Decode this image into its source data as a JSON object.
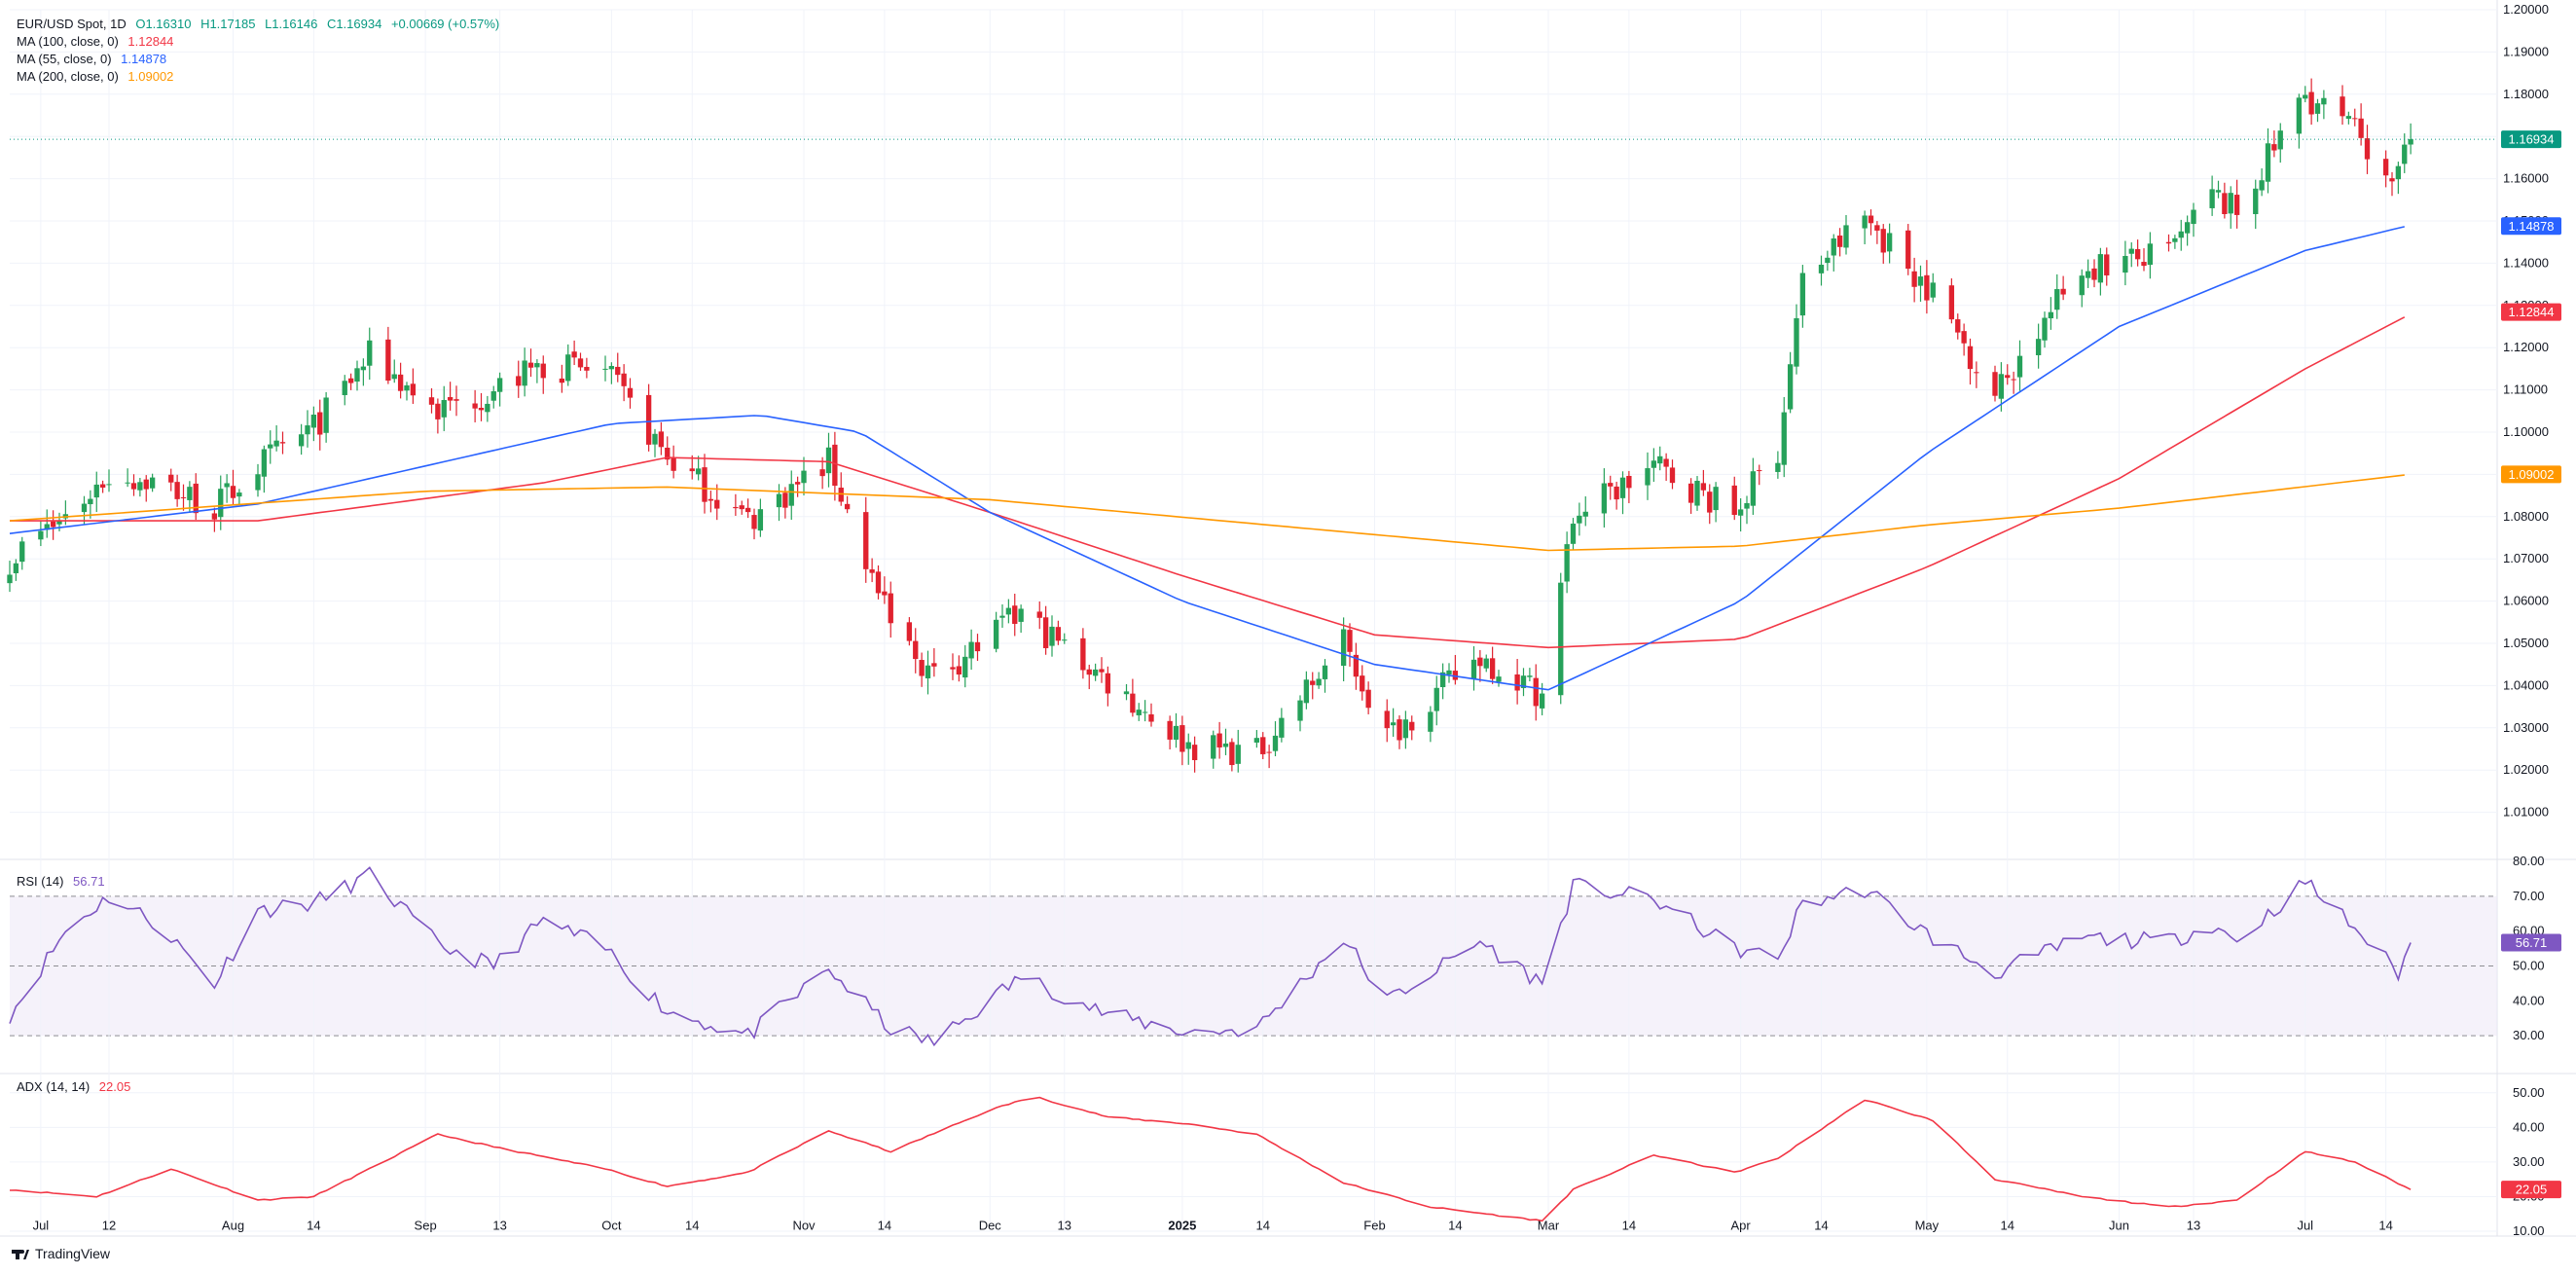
{
  "legend": {
    "symbol": "EUR/USD Spot, 1D",
    "open": "O1.16310",
    "high": "H1.17185",
    "low": "L1.16146",
    "close": "C1.16934",
    "change": "+0.00669 (+0.57%)",
    "ma100_label": "MA (100, close, 0)",
    "ma100_value": "1.12844",
    "ma55_label": "MA (55, close, 0)",
    "ma55_value": "1.14878",
    "ma200_label": "MA (200, close, 0)",
    "ma200_value": "1.09002",
    "rsi_label": "RSI (14)",
    "rsi_value": "56.71",
    "adx_label": "ADX (14, 14)",
    "adx_value": "22.05"
  },
  "footer": {
    "brand": "TradingView"
  },
  "colors": {
    "bull": "#089981",
    "bear": "#F23645",
    "ma100": "#F23645",
    "ma55": "#2962FF",
    "ma200": "#FF9800",
    "rsi": "#7E57C2",
    "adx": "#F23645",
    "candle_up": "#26A15A",
    "candle_down": "#E0222F"
  },
  "chart_data": [
    {
      "type": "candlestick",
      "title": "EUR/USD Spot, 1D",
      "ylim": [
        1.0,
        1.2
      ],
      "y_ticks": [
        "1.20000",
        "1.19000",
        "1.18000",
        "1.17000",
        "1.16000",
        "1.15000",
        "1.14000",
        "1.13000",
        "1.12000",
        "1.11000",
        "1.10000",
        "1.09000",
        "1.08000",
        "1.07000",
        "1.06000",
        "1.05000",
        "1.04000",
        "1.03000",
        "1.02000",
        "1.01000"
      ],
      "x_ticks": [
        "Jul",
        "12",
        "Aug",
        "14",
        "Sep",
        "13",
        "Oct",
        "14",
        "Nov",
        "14",
        "Dec",
        "13",
        "2025",
        "14",
        "Feb",
        "14",
        "Mar",
        "14",
        "Apr",
        "14",
        "May",
        "14",
        "Jun",
        "13",
        "Jul",
        "14"
      ],
      "x_dates": [
        "2024-07-01",
        "2024-07-12",
        "2024-08-01",
        "2024-08-14",
        "2024-09-01",
        "2024-09-13",
        "2024-10-01",
        "2024-10-14",
        "2024-11-01",
        "2024-11-14",
        "2024-12-01",
        "2024-12-13",
        "2025-01-01",
        "2025-01-14",
        "2025-02-01",
        "2025-02-14",
        "2025-03-01",
        "2025-03-14",
        "2025-04-01",
        "2025-04-14",
        "2025-05-01",
        "2025-05-14",
        "2025-06-01",
        "2025-06-13",
        "2025-07-01",
        "2025-07-14"
      ],
      "price_anchors": [
        {
          "date": "2024-06-26",
          "close": 1.07
        },
        {
          "date": "2024-07-05",
          "close": 1.08
        },
        {
          "date": "2024-07-12",
          "close": 1.09
        },
        {
          "date": "2024-07-20",
          "close": 1.088
        },
        {
          "date": "2024-07-29",
          "close": 1.082
        },
        {
          "date": "2024-08-05",
          "close": 1.092
        },
        {
          "date": "2024-08-14",
          "close": 1.101
        },
        {
          "date": "2024-08-23",
          "close": 1.118
        },
        {
          "date": "2024-09-03",
          "close": 1.105
        },
        {
          "date": "2024-09-12",
          "close": 1.11
        },
        {
          "date": "2024-09-20",
          "close": 1.116
        },
        {
          "date": "2024-09-30",
          "close": 1.114
        },
        {
          "date": "2024-10-10",
          "close": 1.094
        },
        {
          "date": "2024-10-23",
          "close": 1.079
        },
        {
          "date": "2024-11-05",
          "close": 1.093
        },
        {
          "date": "2024-11-15",
          "close": 1.054
        },
        {
          "date": "2024-11-22",
          "close": 1.042
        },
        {
          "date": "2024-12-06",
          "close": 1.057
        },
        {
          "date": "2024-12-20",
          "close": 1.041
        },
        {
          "date": "2025-01-02",
          "close": 1.026
        },
        {
          "date": "2025-01-13",
          "close": 1.024
        },
        {
          "date": "2025-01-27",
          "close": 1.05
        },
        {
          "date": "2025-02-03",
          "close": 1.028
        },
        {
          "date": "2025-02-18",
          "close": 1.047
        },
        {
          "date": "2025-02-28",
          "close": 1.038
        },
        {
          "date": "2025-03-05",
          "close": 1.08
        },
        {
          "date": "2025-03-18",
          "close": 1.092
        },
        {
          "date": "2025-03-31",
          "close": 1.081
        },
        {
          "date": "2025-04-07",
          "close": 1.096
        },
        {
          "date": "2025-04-11",
          "close": 1.136
        },
        {
          "date": "2025-04-21",
          "close": 1.151
        },
        {
          "date": "2025-05-02",
          "close": 1.133
        },
        {
          "date": "2025-05-12",
          "close": 1.109
        },
        {
          "date": "2025-05-26",
          "close": 1.139
        },
        {
          "date": "2025-06-09",
          "close": 1.142
        },
        {
          "date": "2025-06-16",
          "close": 1.156
        },
        {
          "date": "2025-06-20",
          "close": 1.152
        },
        {
          "date": "2025-07-01",
          "close": 1.18
        },
        {
          "date": "2025-07-09",
          "close": 1.171
        },
        {
          "date": "2025-07-16",
          "close": 1.16
        },
        {
          "date": "2025-07-18",
          "close": 1.169
        }
      ],
      "last_close": 1.16934,
      "series": [
        {
          "name": "MA (100, close, 0)",
          "last": 1.12844,
          "points": [
            {
              "date": "2024-06-26",
              "value": 1.079
            },
            {
              "date": "2024-08-05",
              "value": 1.079
            },
            {
              "date": "2024-09-20",
              "value": 1.088
            },
            {
              "date": "2024-10-10",
              "value": 1.094
            },
            {
              "date": "2024-11-05",
              "value": 1.093
            },
            {
              "date": "2024-12-01",
              "value": 1.081
            },
            {
              "date": "2025-01-01",
              "value": 1.066
            },
            {
              "date": "2025-02-01",
              "value": 1.052
            },
            {
              "date": "2025-03-01",
              "value": 1.049
            },
            {
              "date": "2025-04-01",
              "value": 1.051
            },
            {
              "date": "2025-05-01",
              "value": 1.068
            },
            {
              "date": "2025-06-01",
              "value": 1.089
            },
            {
              "date": "2025-07-01",
              "value": 1.115
            },
            {
              "date": "2025-07-18",
              "value": 1.128
            }
          ]
        },
        {
          "name": "MA (55, close, 0)",
          "last": 1.14878,
          "points": [
            {
              "date": "2024-06-26",
              "value": 1.076
            },
            {
              "date": "2024-08-05",
              "value": 1.083
            },
            {
              "date": "2024-09-01",
              "value": 1.092
            },
            {
              "date": "2024-10-01",
              "value": 1.102
            },
            {
              "date": "2024-10-25",
              "value": 1.104
            },
            {
              "date": "2024-11-10",
              "value": 1.1
            },
            {
              "date": "2024-12-01",
              "value": 1.081
            },
            {
              "date": "2025-01-01",
              "value": 1.06
            },
            {
              "date": "2025-02-01",
              "value": 1.045
            },
            {
              "date": "2025-03-01",
              "value": 1.039
            },
            {
              "date": "2025-04-01",
              "value": 1.06
            },
            {
              "date": "2025-05-01",
              "value": 1.095
            },
            {
              "date": "2025-06-01",
              "value": 1.125
            },
            {
              "date": "2025-07-01",
              "value": 1.143
            },
            {
              "date": "2025-07-18",
              "value": 1.149
            }
          ]
        },
        {
          "name": "MA (200, close, 0)",
          "last": 1.09002,
          "points": [
            {
              "date": "2024-06-26",
              "value": 1.079
            },
            {
              "date": "2024-09-01",
              "value": 1.086
            },
            {
              "date": "2024-10-10",
              "value": 1.087
            },
            {
              "date": "2024-12-01",
              "value": 1.084
            },
            {
              "date": "2025-01-15",
              "value": 1.078
            },
            {
              "date": "2025-03-01",
              "value": 1.072
            },
            {
              "date": "2025-04-01",
              "value": 1.073
            },
            {
              "date": "2025-05-01",
              "value": 1.078
            },
            {
              "date": "2025-06-01",
              "value": 1.082
            },
            {
              "date": "2025-07-18",
              "value": 1.09
            }
          ]
        }
      ]
    },
    {
      "type": "line",
      "title": "RSI (14)",
      "ylim": [
        20,
        80
      ],
      "y_ticks": [
        "80.00",
        "70.00",
        "60.00",
        "50.00",
        "40.00",
        "30.00"
      ],
      "bands": [
        30,
        50,
        70
      ],
      "last": 56.71,
      "points": [
        {
          "date": "2024-06-26",
          "value": 36
        },
        {
          "date": "2024-07-05",
          "value": 60
        },
        {
          "date": "2024-07-12",
          "value": 70
        },
        {
          "date": "2024-07-20",
          "value": 62
        },
        {
          "date": "2024-07-29",
          "value": 45
        },
        {
          "date": "2024-08-05",
          "value": 66
        },
        {
          "date": "2024-08-14",
          "value": 68
        },
        {
          "date": "2024-08-23",
          "value": 76
        },
        {
          "date": "2024-09-03",
          "value": 56
        },
        {
          "date": "2024-09-12",
          "value": 50
        },
        {
          "date": "2024-09-20",
          "value": 63
        },
        {
          "date": "2024-09-30",
          "value": 55
        },
        {
          "date": "2024-10-10",
          "value": 37
        },
        {
          "date": "2024-10-23",
          "value": 30
        },
        {
          "date": "2024-11-05",
          "value": 49
        },
        {
          "date": "2024-11-15",
          "value": 32
        },
        {
          "date": "2024-11-22",
          "value": 28
        },
        {
          "date": "2024-12-06",
          "value": 47
        },
        {
          "date": "2024-12-20",
          "value": 36
        },
        {
          "date": "2025-01-02",
          "value": 31
        },
        {
          "date": "2025-01-13",
          "value": 32
        },
        {
          "date": "2025-01-27",
          "value": 58
        },
        {
          "date": "2025-02-03",
          "value": 40
        },
        {
          "date": "2025-02-18",
          "value": 57
        },
        {
          "date": "2025-02-28",
          "value": 45
        },
        {
          "date": "2025-03-05",
          "value": 73
        },
        {
          "date": "2025-03-18",
          "value": 69
        },
        {
          "date": "2025-03-31",
          "value": 55
        },
        {
          "date": "2025-04-07",
          "value": 52
        },
        {
          "date": "2025-04-11",
          "value": 68
        },
        {
          "date": "2025-04-21",
          "value": 72
        },
        {
          "date": "2025-05-02",
          "value": 58
        },
        {
          "date": "2025-05-12",
          "value": 48
        },
        {
          "date": "2025-05-26",
          "value": 58
        },
        {
          "date": "2025-06-09",
          "value": 57
        },
        {
          "date": "2025-06-16",
          "value": 62
        },
        {
          "date": "2025-06-20",
          "value": 57
        },
        {
          "date": "2025-07-01",
          "value": 74
        },
        {
          "date": "2025-07-09",
          "value": 61
        },
        {
          "date": "2025-07-16",
          "value": 48
        },
        {
          "date": "2025-07-18",
          "value": 56.71
        }
      ]
    },
    {
      "type": "line",
      "title": "ADX (14, 14)",
      "ylim": [
        10,
        55
      ],
      "y_ticks": [
        "50.00",
        "40.00",
        "30.00",
        "20.00",
        "10.00"
      ],
      "last": 22.05,
      "points": [
        {
          "date": "2024-06-26",
          "value": 22
        },
        {
          "date": "2024-07-10",
          "value": 20
        },
        {
          "date": "2024-07-22",
          "value": 28
        },
        {
          "date": "2024-08-05",
          "value": 19
        },
        {
          "date": "2024-08-14",
          "value": 20
        },
        {
          "date": "2024-08-23",
          "value": 28
        },
        {
          "date": "2024-09-03",
          "value": 38
        },
        {
          "date": "2024-09-13",
          "value": 34
        },
        {
          "date": "2024-09-30",
          "value": 28
        },
        {
          "date": "2024-10-10",
          "value": 23
        },
        {
          "date": "2024-10-23",
          "value": 27
        },
        {
          "date": "2024-11-05",
          "value": 39
        },
        {
          "date": "2024-11-15",
          "value": 33
        },
        {
          "date": "2024-12-01",
          "value": 45
        },
        {
          "date": "2024-12-08",
          "value": 49
        },
        {
          "date": "2024-12-20",
          "value": 43
        },
        {
          "date": "2025-01-02",
          "value": 41
        },
        {
          "date": "2025-01-13",
          "value": 38
        },
        {
          "date": "2025-01-27",
          "value": 24
        },
        {
          "date": "2025-02-10",
          "value": 17
        },
        {
          "date": "2025-02-28",
          "value": 13
        },
        {
          "date": "2025-03-05",
          "value": 22
        },
        {
          "date": "2025-03-18",
          "value": 32
        },
        {
          "date": "2025-03-31",
          "value": 27
        },
        {
          "date": "2025-04-07",
          "value": 31
        },
        {
          "date": "2025-04-21",
          "value": 48
        },
        {
          "date": "2025-05-02",
          "value": 42
        },
        {
          "date": "2025-05-12",
          "value": 25
        },
        {
          "date": "2025-05-26",
          "value": 20
        },
        {
          "date": "2025-06-09",
          "value": 17
        },
        {
          "date": "2025-06-20",
          "value": 19
        },
        {
          "date": "2025-07-01",
          "value": 33
        },
        {
          "date": "2025-07-09",
          "value": 30
        },
        {
          "date": "2025-07-18",
          "value": 22.05
        }
      ]
    }
  ]
}
